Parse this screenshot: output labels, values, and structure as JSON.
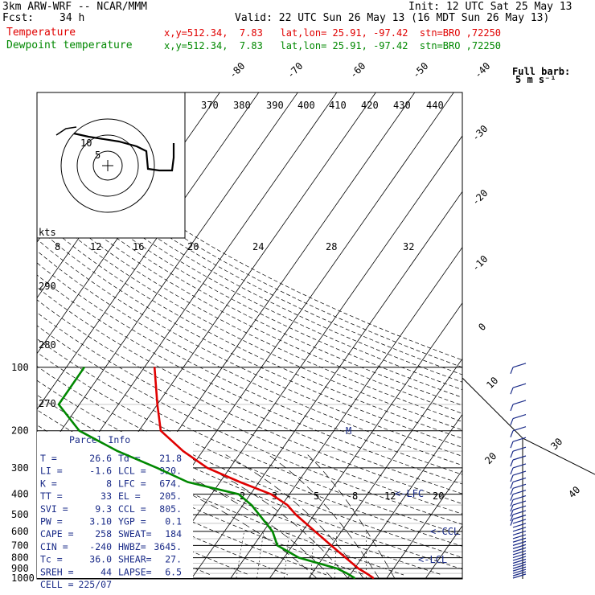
{
  "header": {
    "model": "3km ARW-WRF -- NCAR/MMM",
    "init": "Init: 12 UTC Sat 25 May 13",
    "fcst_label": "Fcst:",
    "fcst_value": "34 h",
    "valid": "Valid: 22 UTC Sun 26 May 13 (16 MDT Sun 26 May 13)",
    "temp_label": "Temperature",
    "temp_loc": "x,y=512.34,  7.83   lat,lon= 25.91, -97.42  stn=BRO ,72250",
    "dew_label": "Dewpoint temperature",
    "dew_loc": "x,y=512.34,  7.83   lat,lon= 25.91, -97.42  stn=BRO ,72250"
  },
  "barb_key": {
    "line1": "Full barb:",
    "line2": "5 m s⁻¹"
  },
  "hodograph": {
    "units": "kts",
    "ring_labels": [
      "5",
      "10"
    ]
  },
  "parcel_info": {
    "title": "Parcel Info",
    "rows": [
      [
        "T  =",
        "26.6",
        "Td =",
        "21.8"
      ],
      [
        "LI =",
        "-1.6",
        "LCL =",
        "920."
      ],
      [
        "K  =",
        "8",
        "LFC =",
        "674."
      ],
      [
        "TT =",
        "33",
        "EL =",
        "205."
      ],
      [
        "SVI =",
        "9.3",
        "CCL =",
        "805."
      ],
      [
        "PW =",
        "3.10",
        "YGP =",
        "0.1"
      ],
      [
        "CAPE =",
        "258",
        "SWEAT=",
        "184"
      ],
      [
        "CIN =",
        "-240",
        "HWBZ=",
        "3645."
      ],
      [
        "Tc =",
        "36.0",
        "SHEAR=",
        "27."
      ],
      [
        "SREH =",
        "44",
        "LAPSE=",
        "6.5"
      ],
      [
        "CELL =",
        "225/07",
        "",
        ""
      ]
    ]
  },
  "chart_data": {
    "type": "line",
    "title": "",
    "xlabel": "",
    "ylabel": "",
    "pressure_levels": [
      100,
      200,
      300,
      400,
      500,
      600,
      700,
      800,
      900,
      1000
    ],
    "ylim": [
      1000,
      100
    ],
    "isotherm_labels": [
      "-80",
      "-70",
      "-60",
      "-50",
      "-40",
      "-30",
      "-20",
      "-10",
      "0",
      "10",
      "20",
      "30",
      "40"
    ],
    "theta_labels": [
      "370",
      "380",
      "390",
      "400",
      "410",
      "420",
      "430",
      "440"
    ],
    "theta_side_labels": [
      "290",
      "280",
      "270"
    ],
    "mixing_ratio_labels": [
      "2",
      "3",
      "5",
      "8",
      "12",
      "20"
    ],
    "hodo_speed_labels": [
      "8",
      "12",
      "16",
      "20",
      "24",
      "28",
      "32"
    ],
    "level_labels": [
      "LFC",
      "CCL",
      "LCL"
    ],
    "series": [
      {
        "name": "Temperature",
        "color": "#e00000",
        "values": [
          [
            100,
            -67.4
          ],
          [
            150,
            -60.0
          ],
          [
            200,
            -54.4
          ],
          [
            250,
            -45.0
          ],
          [
            300,
            -35.8
          ],
          [
            350,
            -24.9
          ],
          [
            400,
            -14.7
          ],
          [
            450,
            -8.6
          ],
          [
            500,
            -4.7
          ],
          [
            600,
            3.2
          ],
          [
            700,
            9.9
          ],
          [
            800,
            15.8
          ],
          [
            900,
            21.0
          ],
          [
            950,
            24.0
          ],
          [
            1000,
            26.6
          ]
        ]
      },
      {
        "name": "Dewpoint temperature",
        "color": "#008800",
        "values": [
          [
            100,
            -85.4
          ],
          [
            150,
            -85.3
          ],
          [
            200,
            -75.3
          ],
          [
            250,
            -61.8
          ],
          [
            300,
            -48.7
          ],
          [
            350,
            -38.3
          ],
          [
            400,
            -23.0
          ],
          [
            450,
            -17.8
          ],
          [
            500,
            -14.1
          ],
          [
            600,
            -7.7
          ],
          [
            700,
            -3.9
          ],
          [
            800,
            3.8
          ],
          [
            900,
            15.5
          ],
          [
            950,
            19.0
          ],
          [
            1000,
            21.8
          ]
        ]
      }
    ]
  }
}
